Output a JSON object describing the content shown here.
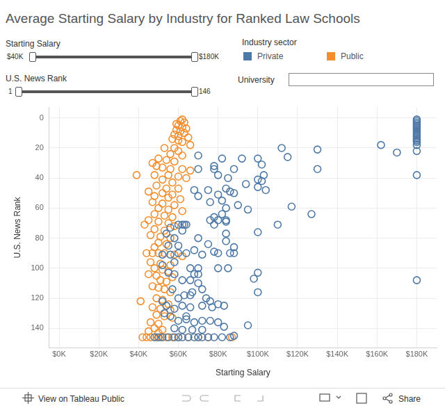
{
  "chart_data": {
    "type": "scatter",
    "title": "Average Starting Salary by Industry for Ranked Law Schools",
    "x_label": "Starting Salary",
    "y_label": "U.S. News Rank",
    "xlim": [
      -5000,
      190000
    ],
    "ylim": [
      -7,
      153
    ],
    "xticks": [
      {
        "value": 0,
        "label": "$0K"
      },
      {
        "value": 20000,
        "label": "$20K"
      },
      {
        "value": 40000,
        "label": "$40K"
      },
      {
        "value": 60000,
        "label": "$60K"
      },
      {
        "value": 80000,
        "label": "$80K"
      },
      {
        "value": 100000,
        "label": "$100K"
      },
      {
        "value": 120000,
        "label": "$120K"
      },
      {
        "value": 140000,
        "label": "$140K"
      },
      {
        "value": 160000,
        "label": "$160K"
      },
      {
        "value": 180000,
        "label": "$180K"
      }
    ],
    "yticks": [
      0,
      20,
      40,
      60,
      80,
      100,
      120,
      140
    ],
    "grid": true,
    "legend": "top",
    "marker": "circle-open",
    "series": [
      {
        "name": "Private",
        "color": "#4e79a7",
        "x": [
          180000,
          180000,
          180000,
          180000,
          180000,
          180000,
          180000,
          180000,
          180000,
          180000,
          180000,
          180000,
          180000,
          180000,
          180000,
          180000,
          180000,
          180000,
          180000,
          180000,
          162000,
          170000,
          112000,
          115000,
          130000,
          130000,
          100000,
          102000,
          92000,
          82000,
          70000,
          70000,
          78000,
          78000,
          88000,
          80000,
          85000,
          103000,
          100000,
          102000,
          94000,
          100000,
          104000,
          84000,
          86000,
          88000,
          80000,
          70000,
          68000,
          75000,
          82000,
          76000,
          90000,
          95000,
          117000,
          127000,
          84000,
          82000,
          78000,
          76000,
          80000,
          78000,
          84000,
          100000,
          110000,
          84000,
          70000,
          75000,
          78000,
          84000,
          88000,
          86000,
          88000,
          80000,
          72000,
          68000,
          60000,
          62000,
          62000,
          63000,
          64000,
          60000,
          56000,
          54000,
          58000,
          55000,
          52000,
          56000,
          64000,
          60000,
          58000,
          52000,
          55000,
          58000,
          66000,
          68000,
          62000,
          66000,
          70000,
          70000,
          70000,
          80000,
          85000,
          100000,
          98000,
          100000,
          57000,
          60000,
          63000,
          66000,
          67000,
          72000,
          74000,
          76000,
          80000,
          52000,
          54000,
          58000,
          62000,
          66000,
          72000,
          77000,
          83000,
          95000,
          88000,
          53000,
          56000,
          60000,
          64000,
          68000,
          72000,
          76000,
          80000,
          83000,
          50000,
          52000,
          55000,
          58000,
          60000,
          62000,
          65000,
          68000,
          70000,
          72000,
          75000,
          78000,
          82000,
          86000,
          48000,
          62000,
          67000,
          72000,
          58000,
          64000,
          84000
        ],
        "values": [
          1,
          2,
          3,
          4,
          5,
          6,
          7,
          8,
          9,
          10,
          11,
          12,
          13,
          14,
          15,
          16,
          18,
          22,
          38,
          108,
          18,
          23,
          20,
          26,
          21,
          34,
          27,
          31,
          27,
          27,
          25,
          34,
          32,
          34,
          34,
          38,
          40,
          38,
          41,
          42,
          44,
          46,
          48,
          47,
          49,
          50,
          51,
          52,
          48,
          48,
          55,
          56,
          58,
          61,
          59,
          64,
          60,
          64,
          66,
          68,
          68,
          71,
          69,
          76,
          71,
          77,
          80,
          84,
          89,
          82,
          86,
          90,
          90,
          90,
          91,
          88,
          85,
          71,
          75,
          71,
          71,
          71,
          73,
          77,
          80,
          85,
          91,
          91,
          90,
          90,
          96,
          98,
          103,
          104,
          100,
          104,
          108,
          108,
          110,
          100,
          104,
          100,
          100,
          103,
          107,
          116,
          114,
          120,
          118,
          118,
          116,
          114,
          120,
          122,
          124,
          122,
          125,
          127,
          125,
          126,
          125,
          126,
          125,
          138,
          145,
          130,
          132,
          135,
          134,
          136,
          135,
          135,
          136,
          139,
          146,
          146,
          146,
          146,
          146,
          146,
          146,
          146,
          146,
          146,
          146,
          146,
          146,
          146,
          146,
          141,
          141,
          141,
          140,
          132,
          68
        ]
      },
      {
        "name": "Public",
        "color": "#f28e2b",
        "x": [
          62000,
          61000,
          63000,
          59000,
          60000,
          62000,
          64000,
          59000,
          61000,
          63000,
          58000,
          60000,
          65000,
          57000,
          60000,
          62000,
          66000,
          58000,
          53000,
          60000,
          56000,
          62000,
          50000,
          54000,
          58000,
          47000,
          49000,
          52000,
          56000,
          62000,
          66000,
          39000,
          48000,
          55000,
          60000,
          64000,
          52000,
          57000,
          49000,
          54000,
          60000,
          45000,
          52000,
          57000,
          48000,
          55000,
          61000,
          47000,
          52000,
          58000,
          50000,
          55000,
          62000,
          48000,
          53000,
          57000,
          45000,
          50000,
          55000,
          43000,
          58000,
          48000,
          53000,
          46000,
          51000,
          56000,
          50000,
          54000,
          48000,
          44000,
          47000,
          50000,
          53000,
          58000,
          62000,
          46000,
          51000,
          56000,
          48000,
          52000,
          55000,
          45000,
          49000,
          57000,
          51000,
          54000,
          47000,
          50000,
          53000,
          56000,
          41000,
          49000,
          52000,
          55000,
          47000,
          51000,
          56000,
          49000,
          53000,
          57000,
          46000,
          50000,
          45000,
          48000,
          52000,
          42000,
          44000,
          46000,
          49000,
          51000,
          54000,
          57000,
          60000,
          65000,
          70000,
          75000,
          87000,
          50000
        ],
        "values": [
          1,
          2,
          3,
          4,
          5,
          6,
          7,
          8,
          9,
          10,
          11,
          12,
          13,
          14,
          15,
          16,
          18,
          20,
          20,
          22,
          24,
          25,
          27,
          28,
          29,
          30,
          32,
          33,
          34,
          34,
          35,
          38,
          38,
          38,
          39,
          40,
          41,
          43,
          45,
          47,
          47,
          49,
          50,
          51,
          52,
          53,
          54,
          56,
          57,
          58,
          60,
          61,
          62,
          64,
          65,
          66,
          68,
          69,
          70,
          71,
          72,
          74,
          75,
          78,
          79,
          80,
          83,
          84,
          86,
          90,
          90,
          90,
          90,
          91,
          92,
          96,
          97,
          98,
          100,
          101,
          102,
          104,
          105,
          106,
          108,
          109,
          112,
          113,
          114,
          116,
          122,
          120,
          121,
          124,
          126,
          127,
          128,
          131,
          132,
          133,
          136,
          137,
          142,
          140,
          141,
          146,
          146,
          146,
          146,
          146,
          146,
          146,
          146,
          146,
          146,
          146,
          146,
          143
        ]
      }
    ]
  },
  "filters": [
    {
      "title": "Starting Salary",
      "min_label": "$40K",
      "max_label": "$180K"
    },
    {
      "title": "U.S. News Rank",
      "min_label": "1",
      "max_label": "146"
    }
  ],
  "legend_title": "Industry sector",
  "search": {
    "label": "University"
  },
  "toolbar": {
    "link": "View on Tableau Public",
    "share": "Share"
  }
}
